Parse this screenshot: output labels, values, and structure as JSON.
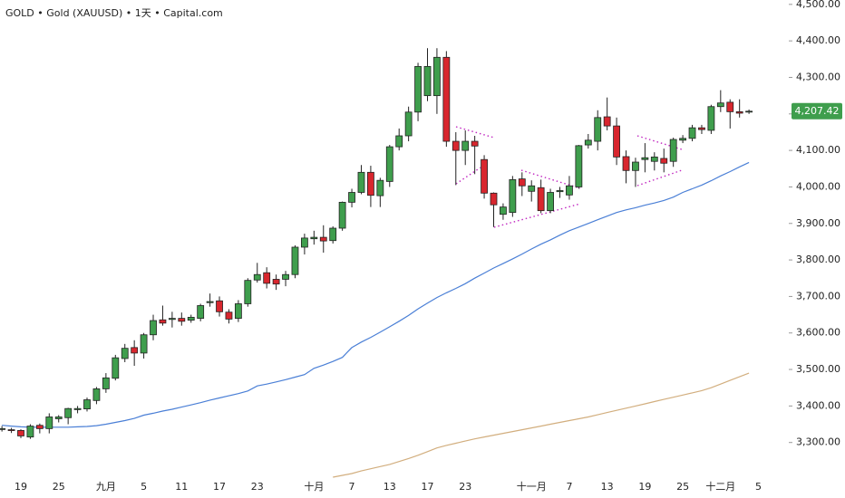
{
  "chart_data": {
    "type": "candlestick",
    "title": "GOLD • Gold (XAUUSD) • 1天 • Capital.com",
    "categories": [
      null,
      null,
      "19",
      null,
      null,
      null,
      "25",
      null,
      null,
      null,
      null,
      "九月",
      null,
      null,
      null,
      "5",
      null,
      null,
      null,
      "11",
      null,
      null,
      null,
      "17",
      null,
      null,
      null,
      "23",
      null,
      null,
      null,
      null,
      null,
      "十月",
      null,
      null,
      null,
      "7",
      null,
      null,
      null,
      "13",
      null,
      null,
      null,
      "17",
      null,
      null,
      null,
      "23",
      null,
      null,
      null,
      null,
      null,
      null,
      "十一月",
      null,
      null,
      null,
      "7",
      null,
      null,
      null,
      "13",
      null,
      null,
      null,
      "19",
      null,
      null,
      null,
      "25",
      null,
      null,
      null,
      "十二月",
      null,
      null,
      null,
      "5"
    ],
    "open": [
      3336,
      3335,
      3333,
      3315,
      3347,
      3338,
      3365,
      3368,
      3390,
      3392,
      3415,
      3447,
      3476,
      3530,
      3560,
      3545,
      3595,
      3636,
      3637,
      3640,
      3635,
      3640,
      3683,
      3688,
      3657,
      3640,
      3680,
      3745,
      3765,
      3747,
      3747,
      3760,
      3835,
      3858,
      3862,
      3853,
      3887,
      3958,
      3985,
      4040,
      3976,
      4015,
      4110,
      4140,
      4205,
      4250,
      4250,
      4355,
      4125,
      4100,
      4125,
      4075,
      3983,
      3925,
      3930,
      4022,
      3988,
      3998,
      3935,
      3987,
      3978,
      4000,
      4115,
      4125,
      4192,
      4167,
      4083,
      4045,
      4075,
      4070,
      4078,
      4070,
      4128,
      4133,
      4162,
      4155,
      4220,
      4232,
      4206,
      4205,
      null
    ],
    "high": [
      3345,
      3340,
      3336,
      3350,
      3352,
      3380,
      3375,
      3395,
      3400,
      3423,
      3452,
      3490,
      3540,
      3570,
      3580,
      3600,
      3650,
      3675,
      3658,
      3656,
      3650,
      3680,
      3708,
      3700,
      3665,
      3690,
      3750,
      3792,
      3780,
      3760,
      3770,
      3840,
      3872,
      3880,
      3895,
      3892,
      3960,
      3995,
      4060,
      4058,
      4025,
      4115,
      4160,
      4220,
      4340,
      4380,
      4380,
      4372,
      4150,
      4155,
      4140,
      4087,
      3985,
      3955,
      4030,
      4040,
      4018,
      4020,
      3995,
      4000,
      4030,
      4115,
      4145,
      4210,
      4245,
      4190,
      4100,
      4080,
      4120,
      4095,
      4105,
      4135,
      4142,
      4170,
      4170,
      4225,
      4265,
      4240,
      4240,
      4212,
      null
    ],
    "low": [
      3330,
      3326,
      3312,
      3310,
      3325,
      3325,
      3355,
      3350,
      3380,
      3385,
      3405,
      3436,
      3470,
      3520,
      3510,
      3530,
      3580,
      3620,
      3615,
      3620,
      3628,
      3632,
      3672,
      3645,
      3626,
      3630,
      3672,
      3738,
      3722,
      3718,
      3728,
      3750,
      3815,
      3842,
      3820,
      3845,
      3880,
      3944,
      3980,
      3945,
      3945,
      4000,
      4100,
      4125,
      4180,
      4235,
      4200,
      4110,
      4005,
      4060,
      4035,
      3968,
      3890,
      3910,
      3918,
      3975,
      3960,
      3928,
      3928,
      3970,
      3965,
      3995,
      4105,
      4100,
      4155,
      4060,
      4010,
      4000,
      4040,
      4045,
      4040,
      4055,
      4120,
      4125,
      4145,
      4145,
      4205,
      4160,
      4190,
      4200,
      null
    ],
    "close": [
      3338,
      3333,
      3318,
      3345,
      3338,
      3370,
      3370,
      3393,
      3393,
      3417,
      3447,
      3477,
      3532,
      3558,
      3545,
      3595,
      3634,
      3627,
      3640,
      3632,
      3643,
      3675,
      3686,
      3658,
      3638,
      3680,
      3744,
      3760,
      3736,
      3734,
      3760,
      3835,
      3860,
      3862,
      3852,
      3887,
      3958,
      3985,
      4040,
      3977,
      4018,
      4110,
      4140,
      4205,
      4330,
      4330,
      4355,
      4125,
      4100,
      4125,
      4112,
      3983,
      3951,
      3945,
      4020,
      4003,
      4003,
      3935,
      3985,
      3990,
      4003,
      4113,
      4128,
      4190,
      4167,
      4082,
      4045,
      4068,
      4080,
      4082,
      4065,
      4130,
      4133,
      4162,
      4157,
      4220,
      4230,
      4206,
      4202,
      4207.42,
      null
    ],
    "up_color": "#3f9e4d",
    "down_color": "#d8262e",
    "overlays": [
      {
        "color": "#4a7fd6",
        "values": [
          3347,
          3345,
          3343,
          3342,
          3342,
          3342,
          3342,
          3342,
          3343,
          3344,
          3346,
          3350,
          3355,
          3360,
          3366,
          3375,
          3380,
          3386,
          3391,
          3397,
          3403,
          3409,
          3416,
          3422,
          3428,
          3434,
          3441,
          3455,
          3460,
          3466,
          3472,
          3479,
          3486,
          3503,
          3512,
          3522,
          3533,
          3560,
          3575,
          3588,
          3602,
          3617,
          3632,
          3648,
          3666,
          3682,
          3697,
          3710,
          3722,
          3735,
          3750,
          3764,
          3778,
          3790,
          3803,
          3816,
          3830,
          3843,
          3855,
          3868,
          3880,
          3890,
          3900,
          3910,
          3920,
          3930,
          3937,
          3943,
          3950,
          3956,
          3963,
          3972,
          3985,
          3995,
          4005,
          4017,
          4030,
          4042,
          4055,
          4067,
          null
        ]
      },
      {
        "color": "#d2ae7e",
        "values": [
          null,
          null,
          null,
          null,
          null,
          null,
          null,
          null,
          null,
          null,
          null,
          null,
          null,
          null,
          null,
          null,
          null,
          null,
          null,
          null,
          null,
          null,
          null,
          null,
          null,
          null,
          null,
          null,
          null,
          null,
          null,
          null,
          null,
          null,
          null,
          3205,
          3210,
          3215,
          3222,
          3228,
          3234,
          3240,
          3248,
          3256,
          3265,
          3275,
          3285,
          3292,
          3298,
          3304,
          3310,
          3315,
          3320,
          3325,
          3330,
          3335,
          3340,
          3345,
          3350,
          3355,
          3360,
          3365,
          3370,
          3376,
          3382,
          3388,
          3394,
          3400,
          3406,
          3412,
          3418,
          3424,
          3430,
          3436,
          3442,
          3450,
          3460,
          3470,
          3480,
          3490,
          null
        ]
      }
    ],
    "last_price_label": "4,207.42",
    "ylim": [
      3205,
      4512
    ],
    "yticks": [
      {
        "value": 3300,
        "label": "3,300.00"
      },
      {
        "value": 3400,
        "label": "3,400.00"
      },
      {
        "value": 3500,
        "label": "3,500.00"
      },
      {
        "value": 3600,
        "label": "3,600.00"
      },
      {
        "value": 3700,
        "label": "3,700.00"
      },
      {
        "value": 3800,
        "label": "3,800.00"
      },
      {
        "value": 3900,
        "label": "3,900.00"
      },
      {
        "value": 4000,
        "label": "4,000.00"
      },
      {
        "value": 4100,
        "label": "4,100.00"
      },
      {
        "value": 4200,
        "label": "4,200.00"
      },
      {
        "value": 4300,
        "label": "4,300.00"
      },
      {
        "value": 4400,
        "label": "4,400.00"
      },
      {
        "value": 4500,
        "label": "4,500.00"
      }
    ],
    "grid": false
  }
}
